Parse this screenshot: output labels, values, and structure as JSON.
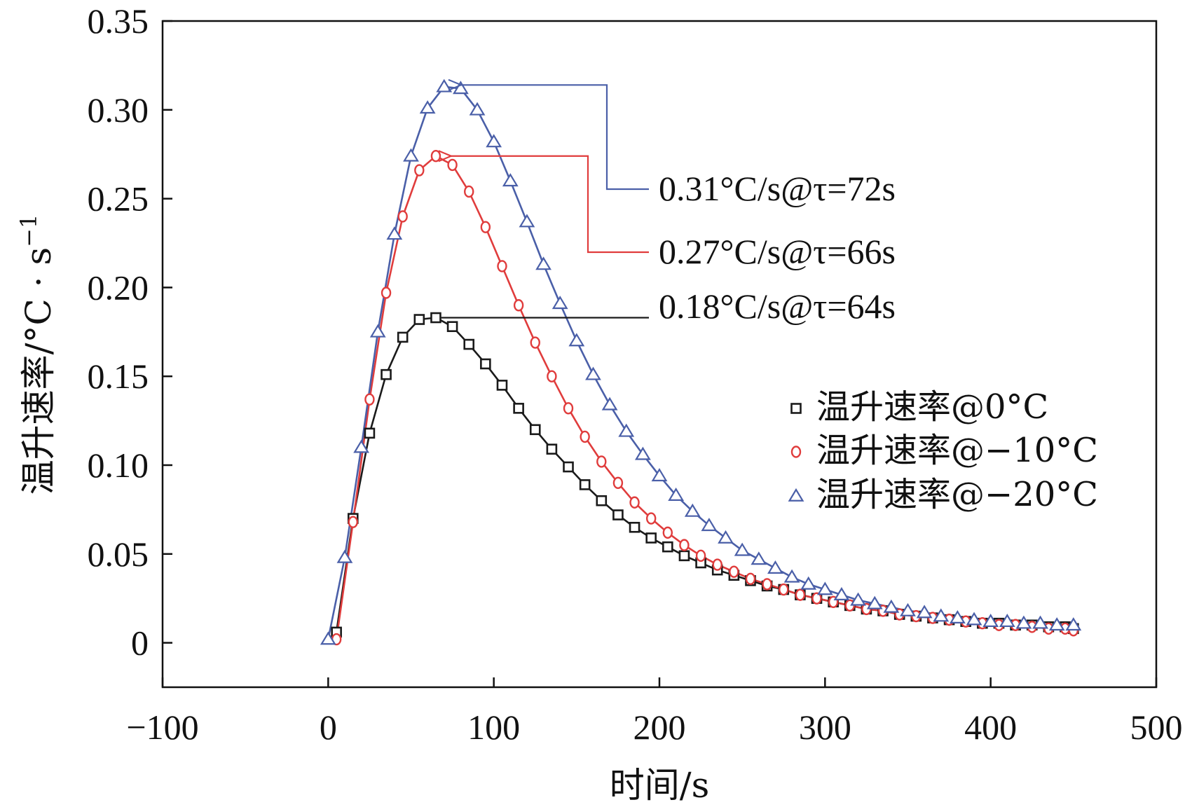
{
  "chart_data": {
    "type": "line",
    "title": "",
    "xlabel": "时间/s",
    "ylabel_main": "温升速率/°C · s",
    "ylabel_sup": "−1",
    "xlim": [
      -100,
      500
    ],
    "ylim": [
      -0.025,
      0.35
    ],
    "x_ticks": [
      -100,
      0,
      100,
      200,
      300,
      400,
      500
    ],
    "x_tick_labels": [
      "−100",
      "0",
      "100",
      "200",
      "300",
      "400",
      "500"
    ],
    "y_ticks": [
      0,
      0.05,
      0.1,
      0.15,
      0.2,
      0.25,
      0.3,
      0.35
    ],
    "y_tick_labels": [
      "0",
      "0.05",
      "0.10",
      "0.15",
      "0.20",
      "0.25",
      "0.30",
      "0.35"
    ],
    "grid": false,
    "legend_position": "right",
    "series": [
      {
        "name": "温升速率@0°C",
        "marker": "square",
        "color": "#1a1a1a",
        "x": [
          5,
          15,
          25,
          35,
          45,
          55,
          65,
          75,
          85,
          95,
          105,
          115,
          125,
          135,
          145,
          155,
          165,
          175,
          185,
          195,
          205,
          215,
          225,
          235,
          245,
          255,
          265,
          275,
          285,
          295,
          305,
          315,
          325,
          335,
          345,
          355,
          365,
          375,
          385,
          395,
          405,
          415,
          425,
          435,
          445,
          450
        ],
        "y": [
          0.006,
          0.07,
          0.118,
          0.151,
          0.172,
          0.182,
          0.183,
          0.178,
          0.168,
          0.157,
          0.145,
          0.132,
          0.12,
          0.109,
          0.099,
          0.089,
          0.08,
          0.072,
          0.065,
          0.059,
          0.054,
          0.049,
          0.045,
          0.041,
          0.038,
          0.035,
          0.032,
          0.03,
          0.027,
          0.025,
          0.023,
          0.021,
          0.019,
          0.018,
          0.016,
          0.015,
          0.014,
          0.013,
          0.012,
          0.011,
          0.011,
          0.01,
          0.01,
          0.009,
          0.009,
          0.008
        ]
      },
      {
        "name": "温升速率@−10°C",
        "marker": "circle",
        "color": "#e03c3c",
        "x": [
          5,
          15,
          25,
          35,
          45,
          55,
          65,
          75,
          85,
          95,
          105,
          115,
          125,
          135,
          145,
          155,
          165,
          175,
          185,
          195,
          205,
          215,
          225,
          235,
          245,
          255,
          265,
          275,
          285,
          295,
          305,
          315,
          325,
          335,
          345,
          355,
          365,
          375,
          385,
          395,
          405,
          415,
          425,
          435,
          445,
          450
        ],
        "y": [
          0.002,
          0.068,
          0.137,
          0.197,
          0.24,
          0.266,
          0.274,
          0.269,
          0.254,
          0.234,
          0.212,
          0.19,
          0.169,
          0.15,
          0.132,
          0.116,
          0.102,
          0.09,
          0.079,
          0.07,
          0.062,
          0.055,
          0.049,
          0.044,
          0.04,
          0.036,
          0.033,
          0.03,
          0.027,
          0.025,
          0.023,
          0.021,
          0.019,
          0.018,
          0.016,
          0.015,
          0.014,
          0.013,
          0.012,
          0.011,
          0.01,
          0.01,
          0.009,
          0.008,
          0.008,
          0.007
        ]
      },
      {
        "name": "温升速率@−20°C",
        "marker": "triangle",
        "color": "#4a5fa8",
        "x": [
          0,
          10,
          20,
          30,
          40,
          50,
          60,
          70,
          80,
          90,
          100,
          110,
          120,
          130,
          140,
          150,
          160,
          170,
          180,
          190,
          200,
          210,
          220,
          230,
          240,
          250,
          260,
          270,
          280,
          290,
          300,
          310,
          320,
          330,
          340,
          350,
          360,
          370,
          380,
          390,
          400,
          410,
          420,
          430,
          440,
          450
        ],
        "y": [
          0.002,
          0.048,
          0.11,
          0.175,
          0.23,
          0.274,
          0.301,
          0.313,
          0.312,
          0.3,
          0.282,
          0.26,
          0.237,
          0.213,
          0.191,
          0.17,
          0.151,
          0.134,
          0.119,
          0.106,
          0.094,
          0.083,
          0.074,
          0.066,
          0.059,
          0.052,
          0.047,
          0.042,
          0.037,
          0.033,
          0.03,
          0.027,
          0.024,
          0.022,
          0.02,
          0.018,
          0.017,
          0.015,
          0.014,
          0.013,
          0.012,
          0.012,
          0.011,
          0.011,
          0.01,
          0.01
        ]
      }
    ],
    "annotations": [
      {
        "text": "0.31°C/s@τ=72s",
        "color": "#4a5fa8",
        "target_x": 72,
        "target_y": 0.314
      },
      {
        "text": "0.27°C/s@τ=66s",
        "color": "#e03c3c",
        "target_x": 66,
        "target_y": 0.274
      },
      {
        "text": "0.18°C/s@τ=64s",
        "color": "#1a1a1a",
        "target_x": 64,
        "target_y": 0.183
      }
    ]
  }
}
